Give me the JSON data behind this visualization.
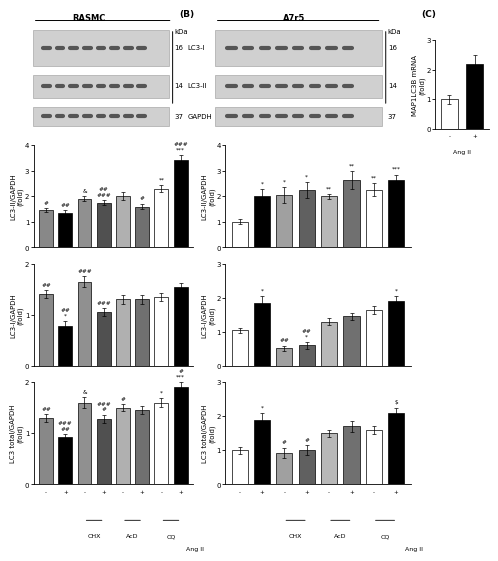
{
  "bar_colors_A": [
    "#888888",
    "black",
    "#909090",
    "#505050",
    "#b0b0b0",
    "#707070",
    "white",
    "black"
  ],
  "bar_colors_B": [
    "white",
    "black",
    "#a0a0a0",
    "#606060",
    "#b8b8b8",
    "#707070",
    "white",
    "black"
  ],
  "A_LC3II": {
    "values": [
      1.45,
      1.35,
      1.9,
      1.75,
      2.0,
      1.6,
      2.3,
      3.4
    ],
    "errors": [
      0.08,
      0.1,
      0.1,
      0.1,
      0.15,
      0.1,
      0.15,
      0.2
    ],
    "ylim": [
      0,
      4
    ],
    "yticks": [
      0,
      1,
      2,
      3,
      4
    ],
    "ylabel": "LC3-II/GAPDH\n(fold)",
    "sig": [
      "#",
      "##",
      "&",
      "##\n###",
      "",
      "#",
      "**",
      "###\n***"
    ]
  },
  "A_LC3I": {
    "values": [
      1.4,
      0.78,
      1.65,
      1.05,
      1.3,
      1.3,
      1.35,
      1.55
    ],
    "errors": [
      0.08,
      0.1,
      0.1,
      0.08,
      0.08,
      0.08,
      0.08,
      0.08
    ],
    "ylim": [
      0,
      2
    ],
    "yticks": [
      0,
      1,
      2
    ],
    "ylabel": "LC3-I/GAPDH\n(fold)",
    "sig": [
      "##",
      "##\n*",
      "###",
      "###",
      "",
      "",
      "",
      ""
    ]
  },
  "A_LC3total": {
    "values": [
      1.3,
      0.93,
      1.6,
      1.28,
      1.5,
      1.45,
      1.6,
      1.9
    ],
    "errors": [
      0.07,
      0.05,
      0.1,
      0.08,
      0.07,
      0.08,
      0.08,
      0.1
    ],
    "ylim": [
      0,
      2
    ],
    "yticks": [
      0,
      1,
      2
    ],
    "ylabel": "LC3 total/GAPDH\n(fold)",
    "sig": [
      "##",
      "###\n##",
      "&",
      "###\n#",
      "#",
      "",
      "*",
      "#\n***"
    ]
  },
  "B_LC3II": {
    "values": [
      1.0,
      2.0,
      2.05,
      2.25,
      2.0,
      2.65,
      2.25,
      2.65
    ],
    "errors": [
      0.1,
      0.28,
      0.3,
      0.32,
      0.1,
      0.35,
      0.25,
      0.2
    ],
    "ylim": [
      0,
      4
    ],
    "yticks": [
      0,
      1,
      2,
      3,
      4
    ],
    "ylabel": "LC3-II/GAPDH\n(fold)",
    "sig": [
      "",
      "*",
      "*",
      "*",
      "**",
      "**",
      "**",
      "***"
    ]
  },
  "B_LC3I": {
    "values": [
      1.05,
      1.85,
      0.52,
      0.6,
      1.3,
      1.45,
      1.65,
      1.9
    ],
    "errors": [
      0.07,
      0.2,
      0.07,
      0.1,
      0.1,
      0.1,
      0.12,
      0.15
    ],
    "ylim": [
      0,
      3
    ],
    "yticks": [
      0,
      1,
      2,
      3
    ],
    "ylabel": "LC3-I/GAPDH\n(fold)",
    "sig": [
      "",
      "*",
      "##",
      "##\n*",
      "",
      "",
      "",
      "*"
    ]
  },
  "B_LC3total": {
    "values": [
      1.0,
      1.9,
      0.92,
      1.0,
      1.5,
      1.7,
      1.6,
      2.1
    ],
    "errors": [
      0.1,
      0.2,
      0.15,
      0.15,
      0.1,
      0.15,
      0.12,
      0.15
    ],
    "ylim": [
      0,
      3
    ],
    "yticks": [
      0,
      1,
      2,
      3
    ],
    "ylabel": "LC3 total/GAPDH\n(fold)",
    "sig": [
      "",
      "*",
      "#",
      "#",
      "",
      "",
      "",
      "$"
    ]
  },
  "C": {
    "values": [
      1.0,
      2.2
    ],
    "errors": [
      0.15,
      0.3
    ],
    "ylim": [
      0,
      3
    ],
    "yticks": [
      0,
      1,
      2,
      3
    ],
    "ylabel": "MAP1LC3B mRNA\n(fold)"
  }
}
